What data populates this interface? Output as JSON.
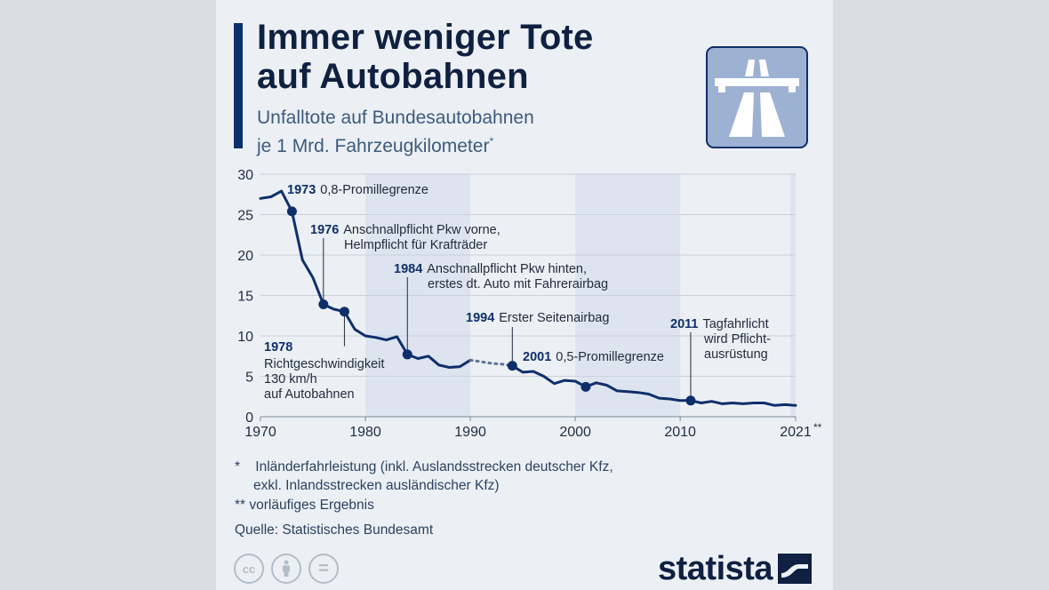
{
  "header": {
    "title_line1": "Immer weniger Tote",
    "title_line2": "auf Autobahnen",
    "subtitle_line1": "Unfalltote auf Bundesautobahnen",
    "subtitle_line2": "je 1 Mrd. Fahrzeugkilometer",
    "subtitle_mark": "*",
    "icon": "highway-icon"
  },
  "chart_data": {
    "type": "line",
    "title": "Immer weniger Tote auf Autobahnen",
    "subtitle": "Unfalltote auf Bundesautobahnen je 1 Mrd. Fahrzeugkilometer*",
    "xlim": [
      1970,
      2021
    ],
    "ylim": [
      0,
      30
    ],
    "x_ticks": [
      1970,
      1980,
      1990,
      2000,
      2010,
      2021
    ],
    "x_tick_suffix_2021": "**",
    "y_ticks": [
      0,
      5,
      10,
      15,
      20,
      25,
      30
    ],
    "grid": "horizontal",
    "shaded_decades": [
      [
        1980,
        1990
      ],
      [
        2000,
        2010
      ]
    ],
    "series": [
      {
        "x": [
          1970,
          1971,
          1972,
          1973,
          1974,
          1975,
          1976,
          1977,
          1978,
          1979,
          1980,
          1981,
          1982,
          1983,
          1984,
          1985,
          1986,
          1987,
          1988,
          1989,
          1990
        ],
        "y": [
          27.0,
          27.2,
          27.9,
          25.4,
          19.4,
          17.2,
          13.9,
          13.3,
          13.0,
          10.8,
          10.0,
          9.8,
          9.5,
          9.9,
          7.7,
          7.2,
          7.5,
          6.4,
          6.1,
          6.2,
          7.0
        ],
        "style": "solid"
      },
      {
        "x": [
          1990,
          1991,
          1992,
          1993,
          1994
        ],
        "y": [
          7.0,
          6.8,
          6.6,
          6.5,
          6.3
        ],
        "style": "dotted"
      },
      {
        "x": [
          1994,
          1995,
          1996,
          1997,
          1998,
          1999,
          2000,
          2001,
          2002,
          2003,
          2004,
          2005,
          2006,
          2007,
          2008,
          2009,
          2010,
          2011,
          2012,
          2013,
          2014,
          2015,
          2016,
          2017,
          2018,
          2019,
          2020,
          2021
        ],
        "y": [
          6.3,
          5.5,
          5.6,
          5.0,
          4.1,
          4.5,
          4.4,
          3.7,
          4.2,
          3.9,
          3.2,
          3.1,
          3.0,
          2.8,
          2.3,
          2.2,
          2.0,
          2.0,
          1.7,
          1.9,
          1.6,
          1.7,
          1.6,
          1.7,
          1.7,
          1.4,
          1.5,
          1.4
        ],
        "style": "solid"
      }
    ],
    "markers": [
      {
        "x": 1973,
        "y": 25.4
      },
      {
        "x": 1976,
        "y": 13.9
      },
      {
        "x": 1978,
        "y": 13.0
      },
      {
        "x": 1984,
        "y": 7.7
      },
      {
        "x": 1994,
        "y": 6.3
      },
      {
        "x": 2001,
        "y": 3.7
      },
      {
        "x": 2011,
        "y": 2.0
      }
    ],
    "annotations": [
      {
        "year": "1973",
        "lines": [
          "0,8-Promillegrenze"
        ]
      },
      {
        "year": "1976",
        "lines": [
          "Anschnallpflicht Pkw vorne,",
          "Helmpflicht für Krafträder"
        ]
      },
      {
        "year": "1978",
        "lines": [
          "Richtgeschwindigkeit",
          "130 km/h",
          "auf Autobahnen"
        ]
      },
      {
        "year": "1984",
        "lines": [
          "Anschnallpflicht Pkw hinten,",
          "erstes dt. Auto mit Fahrerairbag"
        ]
      },
      {
        "year": "1994",
        "lines": [
          "Erster Seitenairbag"
        ]
      },
      {
        "year": "2001",
        "lines": [
          "0,5-Promillegrenze"
        ]
      },
      {
        "year": "2011",
        "lines": [
          "Tagfahrlicht",
          "wird Pflicht-",
          "ausrüstung"
        ]
      }
    ],
    "colors": {
      "line": "#0f2f6b",
      "grid": "#c9d1db",
      "shade": "#dde4ef"
    }
  },
  "footnotes": {
    "note1_mark": "*",
    "note1_line1": "Inländerfahrleistung (inkl. Auslandsstrecken deutscher Kfz,",
    "note1_line2": "exkl. Inlandsstrecken ausländischer Kfz)",
    "note2_mark": "**",
    "note2_text": "vorläufiges Ergebnis",
    "source": "Quelle: Statistisches Bundesamt"
  },
  "footer": {
    "license_icons": [
      "cc-icon",
      "attribution-icon",
      "no-derivatives-icon"
    ],
    "license_cc": "cc",
    "license_eq": "=",
    "brand": "statista",
    "brand_icon": "statista-logo-icon"
  },
  "colors": {
    "page_bg": "#dcdde0",
    "card_bg": "#ecf0f4",
    "accent": "#0a2f6b",
    "title": "#0f2041",
    "subtitle": "#3d5a7e"
  }
}
